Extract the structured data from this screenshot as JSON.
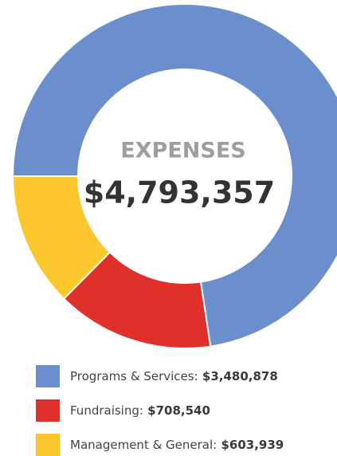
{
  "chart_data": {
    "type": "donut",
    "title": "EXPENSES",
    "total": 4793357,
    "total_label": "$4,793,357",
    "categories": [
      "Programs & Services:",
      "Fundraising:",
      "Management & General:"
    ],
    "values": [
      3480878,
      708540,
      603939
    ],
    "value_labels": [
      "$3,480,878",
      "$708,540",
      "$603,939"
    ],
    "colors": [
      "#6a8fcc",
      "#e0302a",
      "#fcc62d"
    ]
  }
}
